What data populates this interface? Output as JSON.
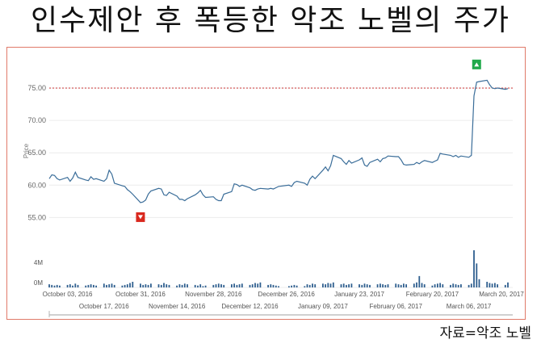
{
  "title": "인수제안 후 폭등한 악조 노벨의 주가",
  "source": "자료=악조 노벨",
  "chart_data": {
    "type": "line",
    "ylabel": "Price",
    "ylim": [
      52.8,
      77.5
    ],
    "yticks": [
      "75.00",
      "70.00",
      "65.00",
      "60.00",
      "55.00"
    ],
    "reference_line": 75.0,
    "x_dates_row1": [
      "October 03, 2016",
      "October 31, 2016",
      "November 28, 2016",
      "December 26, 2016",
      "January 23, 2017",
      "February 20, 2017",
      "March 20, 2017"
    ],
    "x_dates_row2": [
      "October 17, 2016",
      "November 14, 2016",
      "December 12, 2016",
      "January 09, 2017",
      "February 06, 2017",
      "March 06, 2017"
    ],
    "markers": [
      {
        "type": "down",
        "date": "2016-10-31",
        "color": "#d9281e"
      },
      {
        "type": "up",
        "date": "2017-03-09",
        "color": "#1fa94a"
      }
    ],
    "volume_ticks": [
      "4M",
      "0M"
    ],
    "series": [
      {
        "color": "#3a6d99",
        "points": [
          [
            "2016-09-26",
            61.0
          ],
          [
            "2016-09-27",
            61.6
          ],
          [
            "2016-09-28",
            61.5
          ],
          [
            "2016-09-29",
            61.0
          ],
          [
            "2016-09-30",
            60.8
          ],
          [
            "2016-10-03",
            61.2
          ],
          [
            "2016-10-04",
            60.6
          ],
          [
            "2016-10-05",
            61.1
          ],
          [
            "2016-10-06",
            62.0
          ],
          [
            "2016-10-07",
            61.2
          ],
          [
            "2016-10-10",
            60.8
          ],
          [
            "2016-10-11",
            60.7
          ],
          [
            "2016-10-12",
            61.3
          ],
          [
            "2016-10-13",
            60.9
          ],
          [
            "2016-10-14",
            61.0
          ],
          [
            "2016-10-17",
            60.6
          ],
          [
            "2016-10-18",
            61.0
          ],
          [
            "2016-10-19",
            62.3
          ],
          [
            "2016-10-20",
            61.7
          ],
          [
            "2016-10-21",
            60.3
          ],
          [
            "2016-10-24",
            59.9
          ],
          [
            "2016-10-25",
            59.8
          ],
          [
            "2016-10-26",
            59.3
          ],
          [
            "2016-10-27",
            59.0
          ],
          [
            "2016-10-28",
            58.6
          ],
          [
            "2016-10-31",
            57.3
          ],
          [
            "2016-11-01",
            57.4
          ],
          [
            "2016-11-02",
            57.7
          ],
          [
            "2016-11-03",
            58.6
          ],
          [
            "2016-11-04",
            59.1
          ],
          [
            "2016-11-07",
            59.5
          ],
          [
            "2016-11-08",
            59.4
          ],
          [
            "2016-11-09",
            58.5
          ],
          [
            "2016-11-10",
            58.4
          ],
          [
            "2016-11-11",
            58.9
          ],
          [
            "2016-11-14",
            58.3
          ],
          [
            "2016-11-15",
            57.8
          ],
          [
            "2016-11-16",
            57.8
          ],
          [
            "2016-11-17",
            57.6
          ],
          [
            "2016-11-18",
            57.9
          ],
          [
            "2016-11-21",
            58.5
          ],
          [
            "2016-11-22",
            58.8
          ],
          [
            "2016-11-23",
            59.2
          ],
          [
            "2016-11-24",
            58.5
          ],
          [
            "2016-11-25",
            58.1
          ],
          [
            "2016-11-28",
            58.2
          ],
          [
            "2016-11-29",
            57.8
          ],
          [
            "2016-11-30",
            57.6
          ],
          [
            "2016-12-01",
            57.6
          ],
          [
            "2016-12-02",
            58.6
          ],
          [
            "2016-12-05",
            59.0
          ],
          [
            "2016-12-06",
            60.2
          ],
          [
            "2016-12-07",
            60.1
          ],
          [
            "2016-12-08",
            59.8
          ],
          [
            "2016-12-09",
            60.0
          ],
          [
            "2016-12-12",
            59.6
          ],
          [
            "2016-12-13",
            59.3
          ],
          [
            "2016-12-14",
            59.2
          ],
          [
            "2016-12-15",
            59.4
          ],
          [
            "2016-12-16",
            59.5
          ],
          [
            "2016-12-19",
            59.4
          ],
          [
            "2016-12-20",
            59.5
          ],
          [
            "2016-12-21",
            59.4
          ],
          [
            "2016-12-22",
            59.6
          ],
          [
            "2016-12-23",
            59.8
          ],
          [
            "2016-12-27",
            60.0
          ],
          [
            "2016-12-28",
            59.8
          ],
          [
            "2016-12-29",
            60.4
          ],
          [
            "2016-12-30",
            60.6
          ],
          [
            "2017-01-02",
            60.3
          ],
          [
            "2017-01-03",
            60.0
          ],
          [
            "2017-01-04",
            60.9
          ],
          [
            "2017-01-05",
            61.4
          ],
          [
            "2017-01-06",
            61.0
          ],
          [
            "2017-01-09",
            62.3
          ],
          [
            "2017-01-10",
            62.8
          ],
          [
            "2017-01-11",
            62.2
          ],
          [
            "2017-01-12",
            63.0
          ],
          [
            "2017-01-13",
            64.6
          ],
          [
            "2017-01-16",
            64.1
          ],
          [
            "2017-01-17",
            63.6
          ],
          [
            "2017-01-18",
            63.2
          ],
          [
            "2017-01-19",
            63.8
          ],
          [
            "2017-01-20",
            63.4
          ],
          [
            "2017-01-23",
            63.9
          ],
          [
            "2017-01-24",
            64.2
          ],
          [
            "2017-01-25",
            63.1
          ],
          [
            "2017-01-26",
            62.9
          ],
          [
            "2017-01-27",
            63.5
          ],
          [
            "2017-01-30",
            64.0
          ],
          [
            "2017-01-31",
            63.6
          ],
          [
            "2017-02-01",
            64.1
          ],
          [
            "2017-02-02",
            64.2
          ],
          [
            "2017-02-03",
            64.5
          ],
          [
            "2017-02-06",
            64.4
          ],
          [
            "2017-02-07",
            64.4
          ],
          [
            "2017-02-08",
            63.9
          ],
          [
            "2017-02-09",
            63.2
          ],
          [
            "2017-02-10",
            63.1
          ],
          [
            "2017-02-13",
            63.2
          ],
          [
            "2017-02-14",
            63.5
          ],
          [
            "2017-02-15",
            63.3
          ],
          [
            "2017-02-16",
            63.6
          ],
          [
            "2017-02-17",
            63.8
          ],
          [
            "2017-02-20",
            63.5
          ],
          [
            "2017-02-21",
            63.7
          ],
          [
            "2017-02-22",
            63.9
          ],
          [
            "2017-02-23",
            64.9
          ],
          [
            "2017-02-24",
            64.8
          ],
          [
            "2017-02-27",
            64.6
          ],
          [
            "2017-02-28",
            64.4
          ],
          [
            "2017-03-01",
            64.6
          ],
          [
            "2017-03-02",
            64.3
          ],
          [
            "2017-03-03",
            64.5
          ],
          [
            "2017-03-06",
            64.3
          ],
          [
            "2017-03-07",
            64.6
          ],
          [
            "2017-03-08",
            73.8
          ],
          [
            "2017-03-09",
            75.9
          ],
          [
            "2017-03-10",
            76.0
          ],
          [
            "2017-03-13",
            76.2
          ],
          [
            "2017-03-14",
            75.5
          ],
          [
            "2017-03-15",
            75.0
          ],
          [
            "2017-03-16",
            74.9
          ],
          [
            "2017-03-17",
            75.0
          ],
          [
            "2017-03-20",
            74.8
          ],
          [
            "2017-03-21",
            74.9
          ]
        ]
      }
    ],
    "volume": [
      [
        "2016-09-26",
        0.5
      ],
      [
        "2016-09-27",
        0.4
      ],
      [
        "2016-09-28",
        0.3
      ],
      [
        "2016-09-29",
        0.4
      ],
      [
        "2016-09-30",
        0.3
      ],
      [
        "2016-10-03",
        0.4
      ],
      [
        "2016-10-04",
        0.5
      ],
      [
        "2016-10-05",
        0.3
      ],
      [
        "2016-10-06",
        0.6
      ],
      [
        "2016-10-07",
        0.4
      ],
      [
        "2016-10-10",
        0.3
      ],
      [
        "2016-10-11",
        0.4
      ],
      [
        "2016-10-12",
        0.5
      ],
      [
        "2016-10-13",
        0.4
      ],
      [
        "2016-10-14",
        0.3
      ],
      [
        "2016-10-17",
        0.6
      ],
      [
        "2016-10-18",
        0.4
      ],
      [
        "2016-10-19",
        0.5
      ],
      [
        "2016-10-20",
        0.6
      ],
      [
        "2016-10-21",
        0.4
      ],
      [
        "2016-10-24",
        0.3
      ],
      [
        "2016-10-25",
        0.4
      ],
      [
        "2016-10-26",
        0.5
      ],
      [
        "2016-10-27",
        0.7
      ],
      [
        "2016-10-28",
        0.9
      ],
      [
        "2016-10-31",
        0.6
      ],
      [
        "2016-11-01",
        0.4
      ],
      [
        "2016-11-02",
        0.5
      ],
      [
        "2016-11-03",
        0.4
      ],
      [
        "2016-11-04",
        0.6
      ],
      [
        "2016-11-07",
        0.5
      ],
      [
        "2016-11-08",
        0.4
      ],
      [
        "2016-11-09",
        0.7
      ],
      [
        "2016-11-10",
        0.5
      ],
      [
        "2016-11-11",
        0.4
      ],
      [
        "2016-11-14",
        0.3
      ],
      [
        "2016-11-15",
        0.5
      ],
      [
        "2016-11-16",
        0.4
      ],
      [
        "2016-11-17",
        0.6
      ],
      [
        "2016-11-18",
        0.5
      ],
      [
        "2016-11-21",
        0.4
      ],
      [
        "2016-11-22",
        0.3
      ],
      [
        "2016-11-23",
        0.5
      ],
      [
        "2016-11-24",
        0.2
      ],
      [
        "2016-11-25",
        0.3
      ],
      [
        "2016-11-28",
        0.4
      ],
      [
        "2016-11-29",
        0.5
      ],
      [
        "2016-11-30",
        0.6
      ],
      [
        "2016-12-01",
        0.5
      ],
      [
        "2016-12-02",
        0.4
      ],
      [
        "2016-12-05",
        0.5
      ],
      [
        "2016-12-06",
        0.6
      ],
      [
        "2016-12-07",
        0.4
      ],
      [
        "2016-12-08",
        0.5
      ],
      [
        "2016-12-09",
        0.6
      ],
      [
        "2016-12-12",
        0.4
      ],
      [
        "2016-12-13",
        0.5
      ],
      [
        "2016-12-14",
        0.7
      ],
      [
        "2016-12-15",
        0.6
      ],
      [
        "2016-12-16",
        0.8
      ],
      [
        "2016-12-19",
        0.4
      ],
      [
        "2016-12-20",
        0.5
      ],
      [
        "2016-12-21",
        0.4
      ],
      [
        "2016-12-22",
        0.3
      ],
      [
        "2016-12-23",
        0.2
      ],
      [
        "2016-12-27",
        0.2
      ],
      [
        "2016-12-28",
        0.3
      ],
      [
        "2016-12-29",
        0.4
      ],
      [
        "2016-12-30",
        0.3
      ],
      [
        "2017-01-02",
        0.2
      ],
      [
        "2017-01-03",
        0.5
      ],
      [
        "2017-01-04",
        0.4
      ],
      [
        "2017-01-05",
        0.6
      ],
      [
        "2017-01-06",
        0.5
      ],
      [
        "2017-01-09",
        0.6
      ],
      [
        "2017-01-10",
        0.5
      ],
      [
        "2017-01-11",
        0.7
      ],
      [
        "2017-01-12",
        0.6
      ],
      [
        "2017-01-13",
        0.8
      ],
      [
        "2017-01-16",
        0.5
      ],
      [
        "2017-01-17",
        0.6
      ],
      [
        "2017-01-18",
        0.4
      ],
      [
        "2017-01-19",
        0.5
      ],
      [
        "2017-01-20",
        0.6
      ],
      [
        "2017-01-23",
        0.5
      ],
      [
        "2017-01-24",
        0.4
      ],
      [
        "2017-01-25",
        0.6
      ],
      [
        "2017-01-26",
        0.5
      ],
      [
        "2017-01-27",
        0.4
      ],
      [
        "2017-01-30",
        0.5
      ],
      [
        "2017-01-31",
        0.6
      ],
      [
        "2017-02-01",
        0.5
      ],
      [
        "2017-02-02",
        0.4
      ],
      [
        "2017-02-03",
        0.5
      ],
      [
        "2017-02-06",
        0.6
      ],
      [
        "2017-02-07",
        0.5
      ],
      [
        "2017-02-08",
        0.4
      ],
      [
        "2017-02-09",
        0.6
      ],
      [
        "2017-02-10",
        0.5
      ],
      [
        "2017-02-13",
        0.6
      ],
      [
        "2017-02-14",
        0.8
      ],
      [
        "2017-02-15",
        1.8
      ],
      [
        "2017-02-16",
        0.7
      ],
      [
        "2017-02-17",
        0.5
      ],
      [
        "2017-02-20",
        0.3
      ],
      [
        "2017-02-21",
        0.5
      ],
      [
        "2017-02-22",
        0.6
      ],
      [
        "2017-02-23",
        0.7
      ],
      [
        "2017-02-24",
        0.5
      ],
      [
        "2017-02-27",
        0.4
      ],
      [
        "2017-02-28",
        0.6
      ],
      [
        "2017-03-01",
        0.5
      ],
      [
        "2017-03-02",
        0.4
      ],
      [
        "2017-03-03",
        0.5
      ],
      [
        "2017-03-06",
        0.4
      ],
      [
        "2017-03-07",
        0.6
      ],
      [
        "2017-03-08",
        5.9
      ],
      [
        "2017-03-09",
        3.8
      ],
      [
        "2017-03-10",
        1.3
      ],
      [
        "2017-03-13",
        0.9
      ],
      [
        "2017-03-14",
        0.7
      ],
      [
        "2017-03-15",
        0.6
      ],
      [
        "2017-03-16",
        0.7
      ],
      [
        "2017-03-17",
        0.5
      ],
      [
        "2017-03-20",
        0.4
      ],
      [
        "2017-03-21",
        0.8
      ]
    ]
  }
}
